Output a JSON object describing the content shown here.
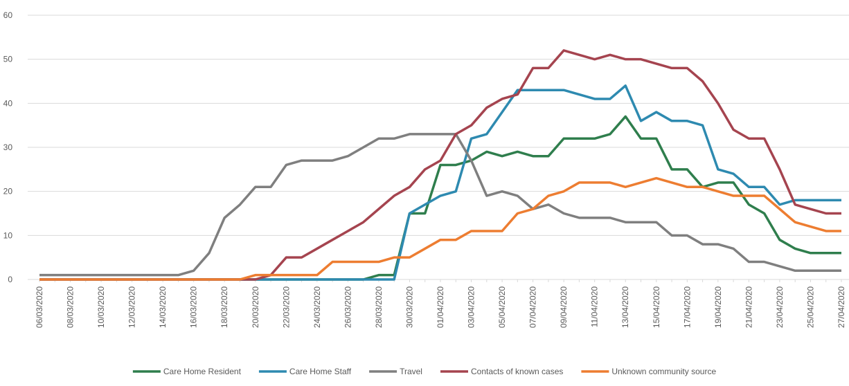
{
  "chart_data": {
    "type": "line",
    "categories": [
      "06/03/2020",
      null,
      "08/03/2020",
      null,
      "10/03/2020",
      null,
      "12/03/2020",
      null,
      "14/03/2020",
      null,
      "16/03/2020",
      null,
      "18/03/2020",
      null,
      "20/03/2020",
      null,
      "22/03/2020",
      null,
      "24/03/2020",
      null,
      "26/03/2020",
      null,
      "28/03/2020",
      null,
      "30/03/2020",
      null,
      "01/04/2020",
      null,
      "03/04/2020",
      null,
      "05/04/2020",
      null,
      "07/04/2020",
      null,
      "09/04/2020",
      null,
      "11/04/2020",
      null,
      "13/04/2020",
      null,
      "15/04/2020",
      null,
      "17/04/2020",
      null,
      "19/04/2020",
      null,
      "21/04/2020",
      null,
      "23/04/2020",
      null,
      "25/04/2020",
      null,
      "27/04/2020"
    ],
    "series": [
      {
        "name": "Care Home Resident",
        "color": "#2f7e4d",
        "values": [
          0,
          0,
          0,
          0,
          0,
          0,
          0,
          0,
          0,
          0,
          0,
          0,
          0,
          0,
          0,
          0,
          0,
          0,
          0,
          0,
          0,
          0,
          1,
          1,
          15,
          15,
          26,
          26,
          27,
          29,
          28,
          29,
          28,
          28,
          32,
          32,
          32,
          33,
          37,
          32,
          32,
          25,
          25,
          21,
          22,
          22,
          17,
          15,
          9,
          7,
          6,
          6,
          6
        ]
      },
      {
        "name": "Care Home Staff",
        "color": "#2e8ab0",
        "values": [
          0,
          0,
          0,
          0,
          0,
          0,
          0,
          0,
          0,
          0,
          0,
          0,
          0,
          0,
          0,
          0,
          0,
          0,
          0,
          0,
          0,
          0,
          0,
          0,
          15,
          17,
          19,
          20,
          32,
          33,
          38,
          43,
          43,
          43,
          43,
          42,
          41,
          41,
          44,
          36,
          38,
          36,
          36,
          35,
          25,
          24,
          21,
          21,
          17,
          18,
          18,
          18,
          18
        ]
      },
      {
        "name": "Travel",
        "color": "#7f7f7f",
        "values": [
          1,
          1,
          1,
          1,
          1,
          1,
          1,
          1,
          1,
          1,
          2,
          6,
          14,
          17,
          21,
          21,
          26,
          27,
          27,
          27,
          28,
          30,
          32,
          32,
          33,
          33,
          33,
          33,
          27,
          19,
          20,
          19,
          16,
          17,
          15,
          14,
          14,
          14,
          13,
          13,
          13,
          10,
          10,
          8,
          8,
          7,
          4,
          4,
          3,
          2,
          2,
          2,
          2
        ]
      },
      {
        "name": "Contacts of known cases",
        "color": "#a5444f",
        "values": [
          0,
          0,
          0,
          0,
          0,
          0,
          0,
          0,
          0,
          0,
          0,
          0,
          0,
          0,
          0,
          1,
          5,
          5,
          7,
          9,
          11,
          13,
          16,
          19,
          21,
          25,
          27,
          33,
          35,
          39,
          41,
          42,
          48,
          48,
          52,
          51,
          50,
          51,
          50,
          50,
          49,
          48,
          48,
          45,
          40,
          34,
          32,
          32,
          25,
          17,
          16,
          15,
          15
        ]
      },
      {
        "name": "Unknown community source",
        "color": "#ed7d31",
        "values": [
          0,
          0,
          0,
          0,
          0,
          0,
          0,
          0,
          0,
          0,
          0,
          0,
          0,
          0,
          1,
          1,
          1,
          1,
          1,
          4,
          4,
          4,
          4,
          5,
          5,
          7,
          9,
          9,
          11,
          11,
          11,
          15,
          16,
          19,
          20,
          22,
          22,
          22,
          21,
          22,
          23,
          22,
          21,
          21,
          20,
          19,
          19,
          19,
          16,
          13,
          12,
          11,
          11
        ]
      }
    ],
    "ylim": [
      0,
      60
    ],
    "yticks": [
      0,
      10,
      20,
      30,
      40,
      50,
      60
    ],
    "grid": true,
    "legend": "bottom"
  }
}
